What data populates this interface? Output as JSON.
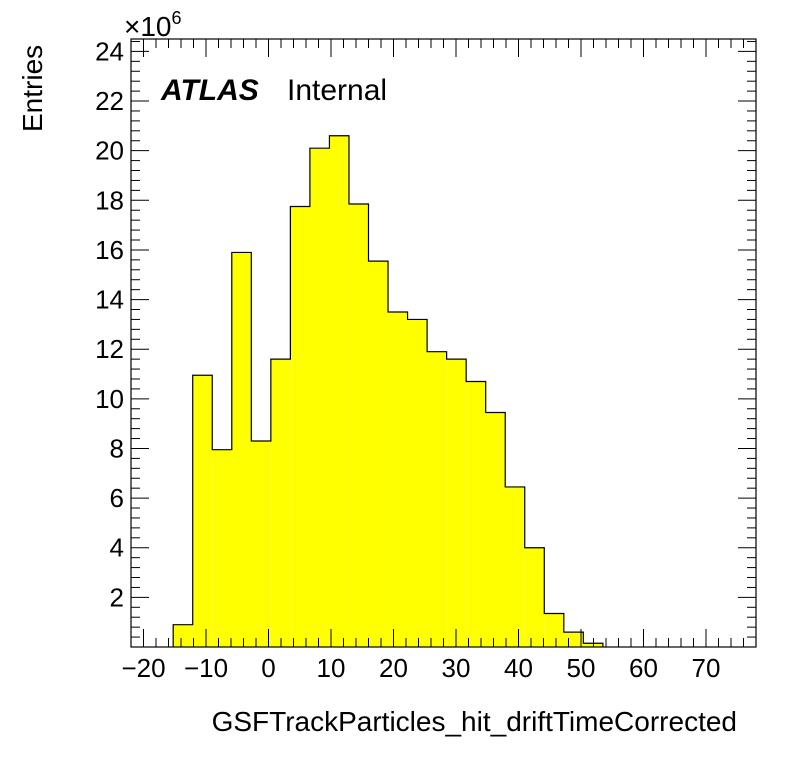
{
  "chart_data": {
    "type": "bar",
    "histogram": true,
    "xlabel": "GSFTrackParticles_hit_driftTimeCorrected",
    "ylabel": "Entries",
    "y_multiplier_label": "×10",
    "y_multiplier_exponent": "6",
    "experiment_label": "ATLAS",
    "status_label": "Internal",
    "xlim": [
      -22,
      78
    ],
    "ylim": [
      0,
      24.5
    ],
    "x_tick_labels": [
      "−20",
      "−10",
      "0",
      "10",
      "20",
      "30",
      "40",
      "50",
      "60",
      "70"
    ],
    "x_ticks": [
      -20,
      -10,
      0,
      10,
      20,
      30,
      40,
      50,
      60,
      70
    ],
    "y_tick_labels": [
      "2",
      "4",
      "6",
      "8",
      "10",
      "12",
      "14",
      "16",
      "18",
      "20",
      "22",
      "24"
    ],
    "y_ticks": [
      2,
      4,
      6,
      8,
      10,
      12,
      14,
      16,
      18,
      20,
      22,
      24
    ],
    "bin_edges": [
      -15.25,
      -12.125,
      -9.0,
      -5.875,
      -2.75,
      0.375,
      3.5,
      6.625,
      9.75,
      12.875,
      16.0,
      19.125,
      22.25,
      25.375,
      28.5,
      31.625,
      34.75,
      37.875,
      41.0,
      44.125,
      47.25,
      50.375,
      53.5
    ],
    "values": [
      0.9,
      10.95,
      7.95,
      15.9,
      8.3,
      11.6,
      17.75,
      20.1,
      20.6,
      17.85,
      15.55,
      13.5,
      13.2,
      11.9,
      11.6,
      10.7,
      9.45,
      6.45,
      4.0,
      1.35,
      0.6,
      0.15
    ],
    "grid": false,
    "fill_color": "#ffff00",
    "line_color": "#000000"
  }
}
